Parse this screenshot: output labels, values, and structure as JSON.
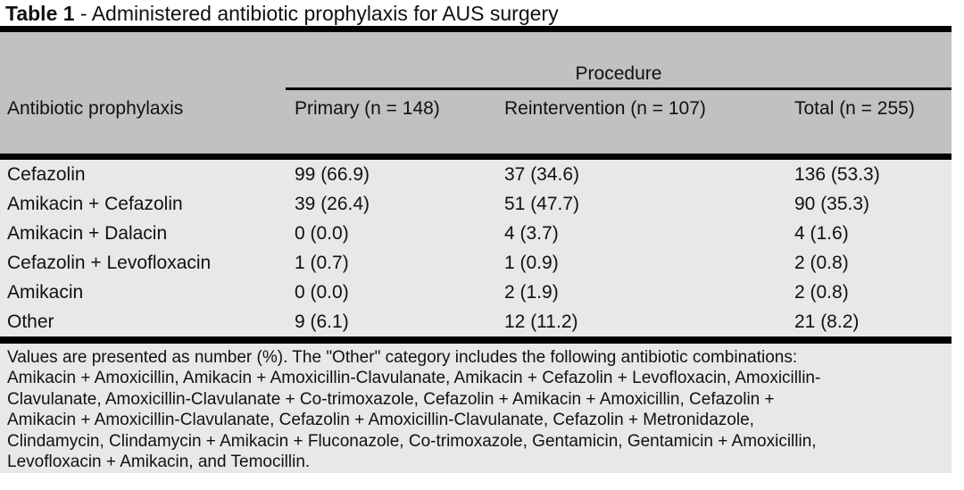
{
  "title": {
    "label": "Table 1",
    "text": " - Administered antibiotic prophylaxis for AUS surgery"
  },
  "table": {
    "group_header": "Procedure",
    "columns": [
      "Antibiotic prophylaxis",
      "Primary (n = 148)",
      "Reintervention (n = 107)",
      "Total (n = 255)"
    ],
    "rows": [
      {
        "label": "Cefazolin",
        "primary": "99 (66.9)",
        "reintervention": "37 (34.6)",
        "total": "136 (53.3)"
      },
      {
        "label": "Amikacin + Cefazolin",
        "primary": "39 (26.4)",
        "reintervention": "51 (47.7)",
        "total": "90 (35.3)"
      },
      {
        "label": "Amikacin + Dalacin",
        "primary": "0 (0.0)",
        "reintervention": "4 (3.7)",
        "total": "4 (1.6)"
      },
      {
        "label": "Cefazolin + Levofloxacin",
        "primary": "1 (0.7)",
        "reintervention": "1 (0.9)",
        "total": "2 (0.8)"
      },
      {
        "label": "Amikacin",
        "primary": "0 (0.0)",
        "reintervention": "2 (1.9)",
        "total": "2 (0.8)"
      },
      {
        "label": "Other",
        "primary": "9 (6.1)",
        "reintervention": "12 (11.2)",
        "total": "21 (8.2)"
      }
    ]
  },
  "footnote": {
    "lines": [
      "Values are presented as number (%). The \"Other\" category includes the following antibiotic combinations:",
      "Amikacin + Amoxicillin, Amikacin + Amoxicillin-Clavulanate, Amikacin + Cefazolin + Levofloxacin, Amoxicillin-",
      "Clavulanate, Amoxicillin-Clavulanate + Co-trimoxazole, Cefazolin + Amikacin + Amoxicillin, Cefazolin +",
      "Amikacin + Amoxicillin-Clavulanate, Cefazolin + Amoxicillin-Clavulanate, Cefazolin + Metronidazole,",
      "Clindamycin, Clindamycin + Amikacin + Fluconazole, Co-trimoxazole, Gentamicin, Gentamicin + Amoxicillin,",
      "Levofloxacin + Amikacin, and Temocillin."
    ],
    "full_text": "Values are presented as number (%). The \"Other\" category includes the following antibiotic combinations: Amikacin + Amoxicillin, Amikacin + Amoxicillin-Clavulanate, Amikacin + Cefazolin + Levofloxacin, Amoxicillin-Clavulanate, Amoxicillin-Clavulanate + Co-trimoxazole, Cefazolin + Amikacin + Amoxicillin, Cefazolin + Amikacin + Amoxicillin-Clavulanate, Cefazolin + Amoxicillin-Clavulanate, Cefazolin + Metronidazole, Clindamycin, Clindamycin + Amikacin + Fluconazole, Co-trimoxazole, Gentamicin, Gentamicin + Amoxicillin, Levofloxacin + Amikacin, and Temocillin."
  },
  "colors": {
    "header_bg": "#c1c1c1",
    "body_bg": "#e8e8e8",
    "rule": "#000000",
    "page_bg": "#ffffff"
  }
}
